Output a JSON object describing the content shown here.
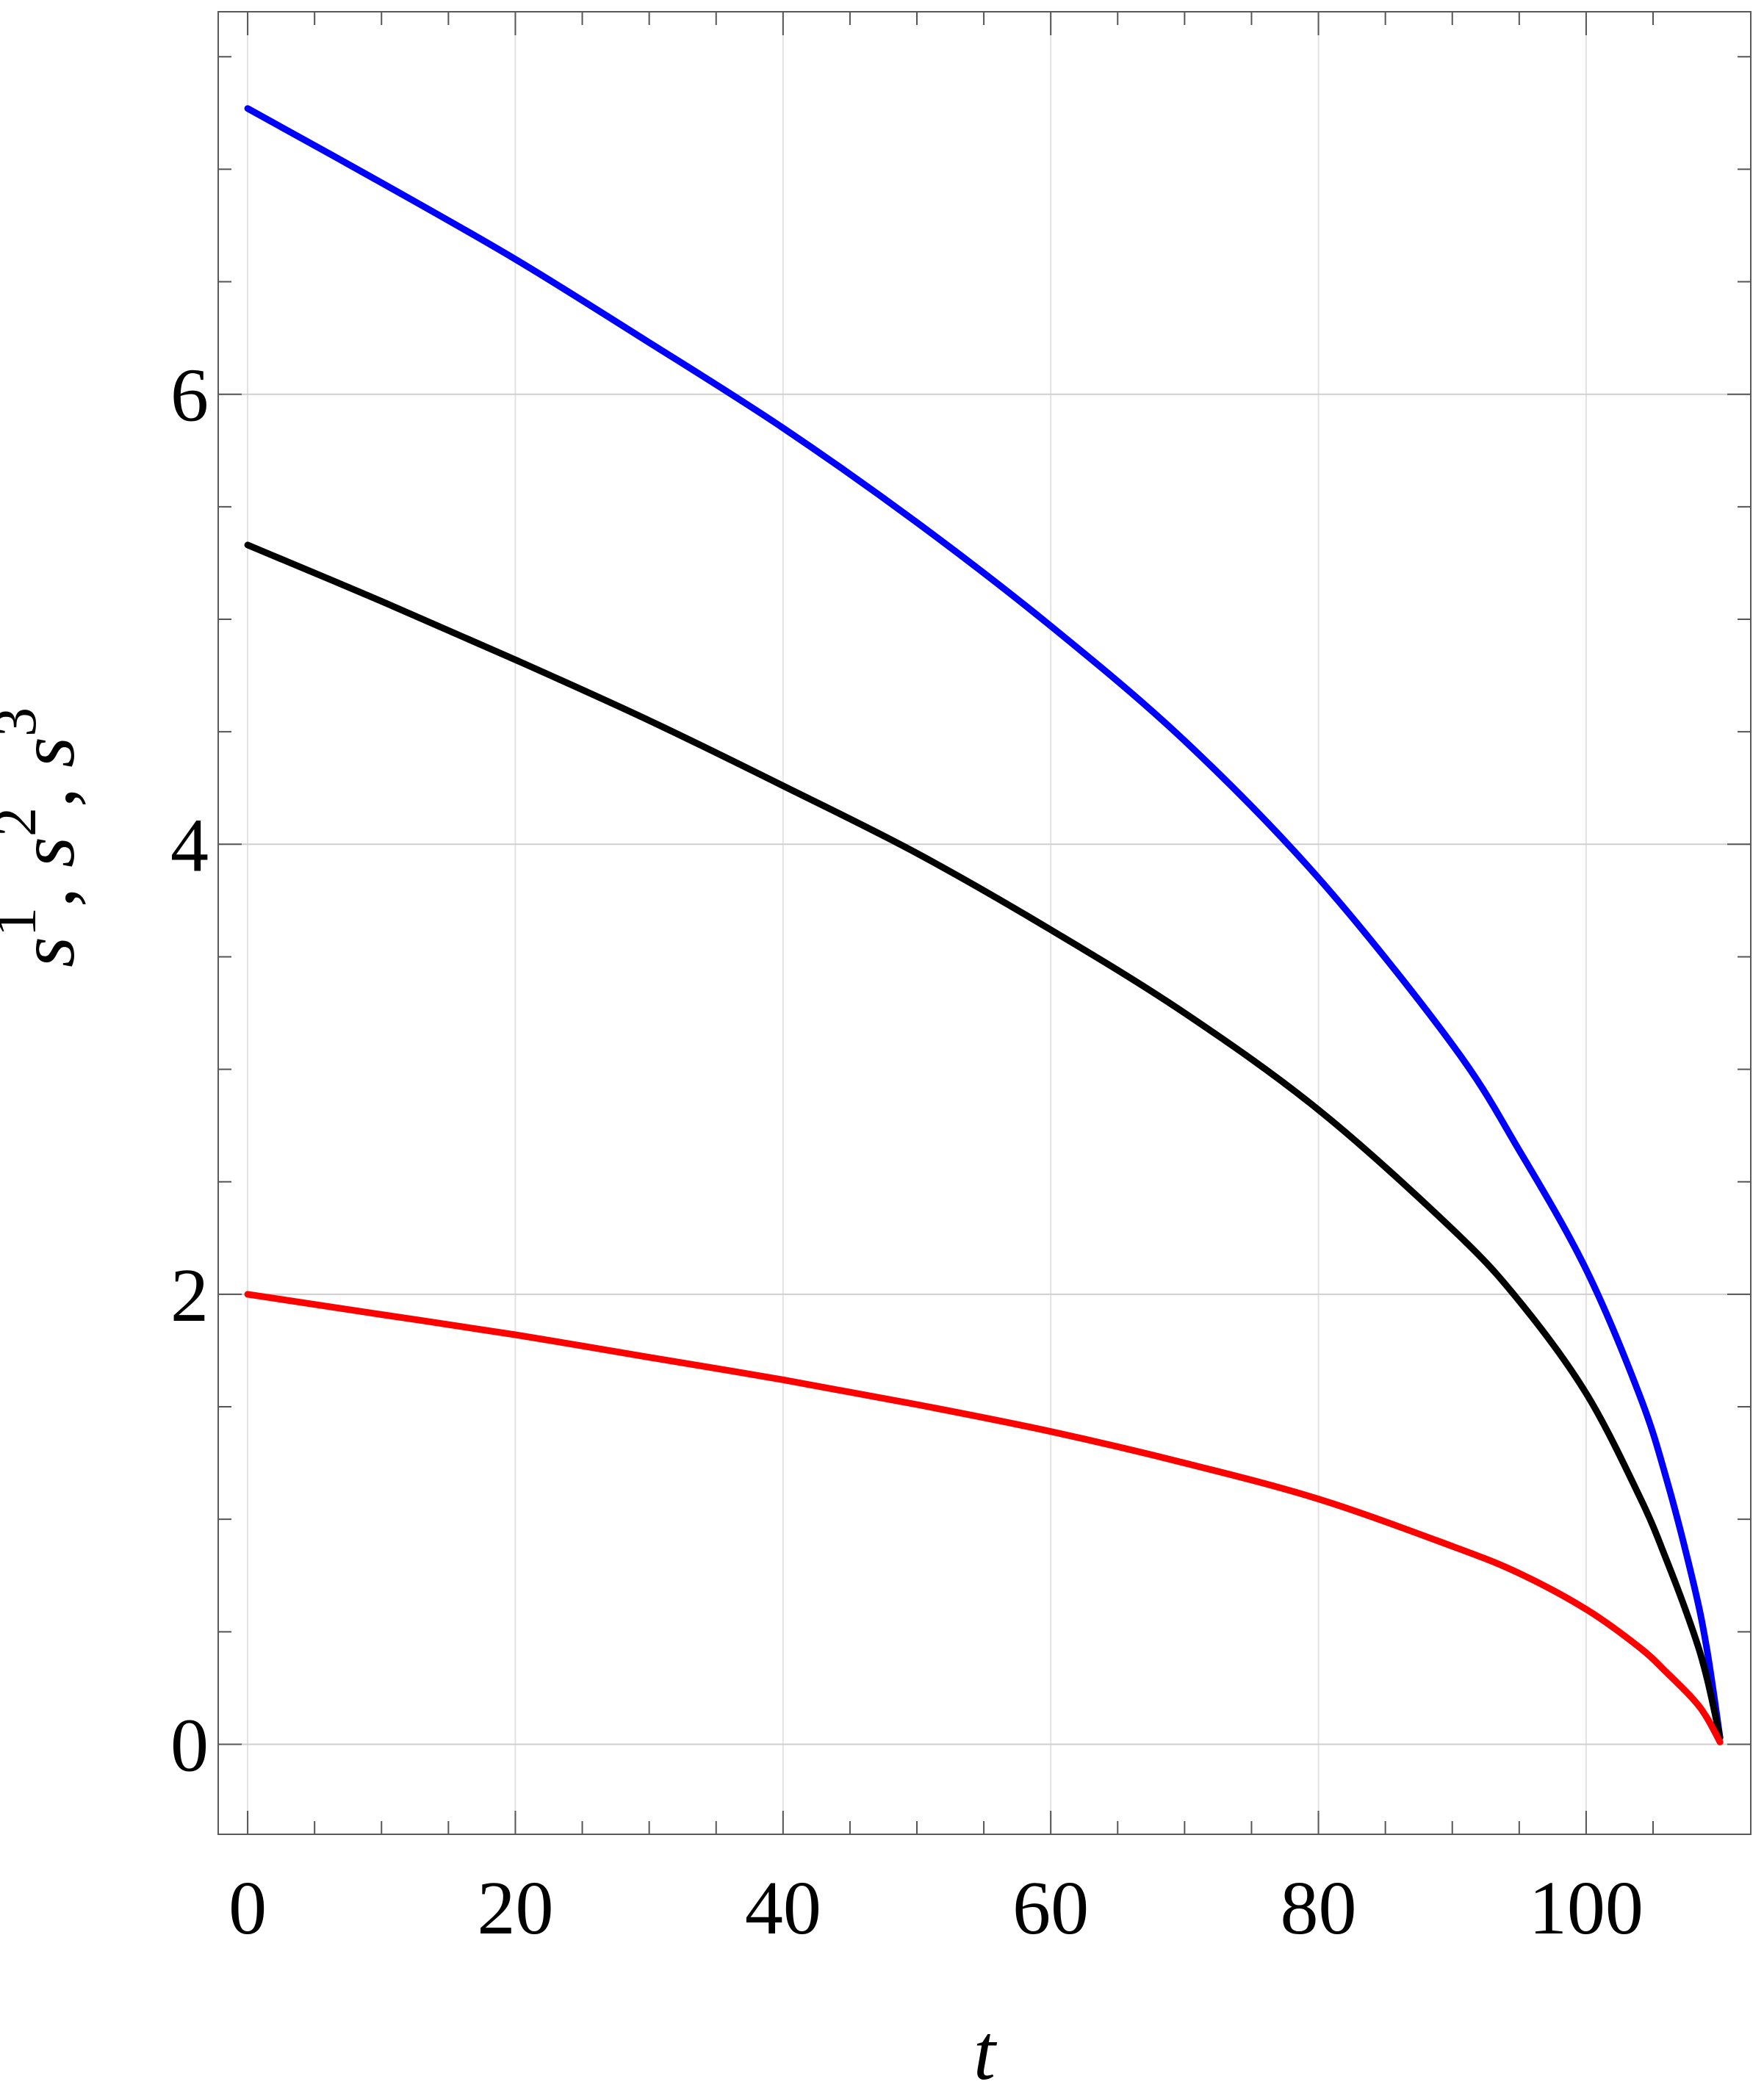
{
  "chart_data": {
    "type": "line",
    "title": "",
    "xlabel": "t",
    "ylabel": {
      "base": "s",
      "parts": [
        {
          "base": "s",
          "sup": "1",
          "sep": ", "
        },
        {
          "base": "s",
          "sup": "2",
          "sep": ", "
        },
        {
          "base": "s",
          "sup": "3",
          "sep": ""
        }
      ]
    },
    "xlim": [
      -2.2,
      112.3
    ],
    "ylim": [
      -0.4,
      7.7
    ],
    "x_ticks": [
      0,
      20,
      40,
      60,
      80,
      100
    ],
    "y_ticks": [
      0,
      2,
      4,
      6
    ],
    "x_minor_ticks": [
      5,
      10,
      15,
      25,
      30,
      35,
      45,
      50,
      55,
      65,
      70,
      75,
      85,
      90,
      95,
      105
    ],
    "y_minor_ticks": [
      0.5,
      1,
      1.5,
      2.5,
      3,
      3.5,
      4.5,
      5,
      5.5,
      6.5,
      7,
      7.5
    ],
    "grid": true,
    "series": [
      {
        "color": "#0000ff",
        "x": [
          0,
          10,
          20,
          30,
          40,
          50,
          60,
          70,
          80,
          90,
          95,
          100,
          104,
          106,
          108,
          109,
          110
        ],
        "y": [
          7.27,
          6.94,
          6.6,
          6.23,
          5.85,
          5.43,
          4.97,
          4.46,
          3.85,
          3.11,
          2.64,
          2.11,
          1.55,
          1.18,
          0.72,
          0.43,
          0.03
        ]
      },
      {
        "color": "#000000",
        "x": [
          0,
          10,
          20,
          30,
          40,
          50,
          60,
          70,
          80,
          90,
          95,
          100,
          104,
          106,
          108,
          109,
          110
        ],
        "y": [
          5.33,
          5.08,
          4.82,
          4.55,
          4.26,
          3.96,
          3.62,
          3.25,
          2.82,
          2.29,
          1.97,
          1.56,
          1.1,
          0.82,
          0.5,
          0.3,
          0.03
        ]
      },
      {
        "color": "#ff0000",
        "x": [
          0,
          10,
          20,
          30,
          40,
          50,
          60,
          70,
          80,
          90,
          95,
          100,
          104,
          106,
          108,
          109,
          110
        ],
        "y": [
          2.0,
          1.91,
          1.82,
          1.72,
          1.62,
          1.51,
          1.39,
          1.25,
          1.09,
          0.88,
          0.76,
          0.6,
          0.43,
          0.32,
          0.2,
          0.12,
          0.01
        ]
      }
    ]
  }
}
